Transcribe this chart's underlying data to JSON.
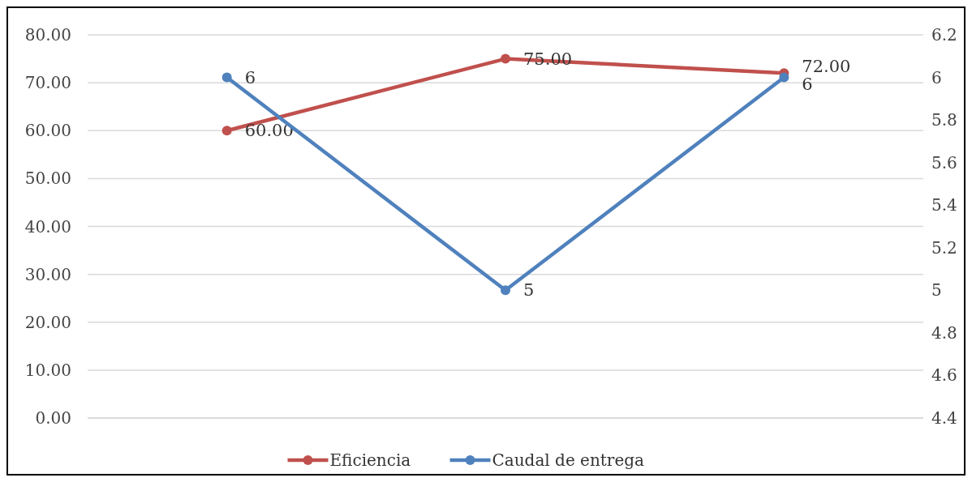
{
  "chart_data": {
    "type": "line",
    "categories": [
      null,
      null,
      null
    ],
    "series": [
      {
        "name": "Eficiencia",
        "color": "#c0504d",
        "values": [
          60,
          75,
          72
        ],
        "value_labels": [
          "60.00",
          "75.00",
          "72.00"
        ]
      },
      {
        "name": "Caudal de entrega",
        "color": "#4f81bd",
        "values": [
          6,
          5,
          6
        ],
        "axis": "y2",
        "value_labels": [
          "6",
          "5",
          "6"
        ]
      }
    ],
    "ylim": [
      0,
      80
    ],
    "yticks": [
      {
        "value": 0,
        "label": "0.00"
      },
      {
        "value": 10,
        "label": "10.00"
      },
      {
        "value": 20,
        "label": "20.00"
      },
      {
        "value": 30,
        "label": "30.00"
      },
      {
        "value": 40,
        "label": "40.00"
      },
      {
        "value": 50,
        "label": "50.00"
      },
      {
        "value": 60,
        "label": "60.00"
      },
      {
        "value": 70,
        "label": "70.00"
      },
      {
        "value": 80,
        "label": "80.00"
      }
    ],
    "y2lim": [
      4.4,
      6.2
    ],
    "y2ticks": [
      4.4,
      4.6,
      4.8,
      5,
      5.2,
      5.4,
      5.6,
      5.8,
      6,
      6.2
    ],
    "grid": "y",
    "legend": "bottom",
    "marker": "circle",
    "line_style": "solid"
  }
}
